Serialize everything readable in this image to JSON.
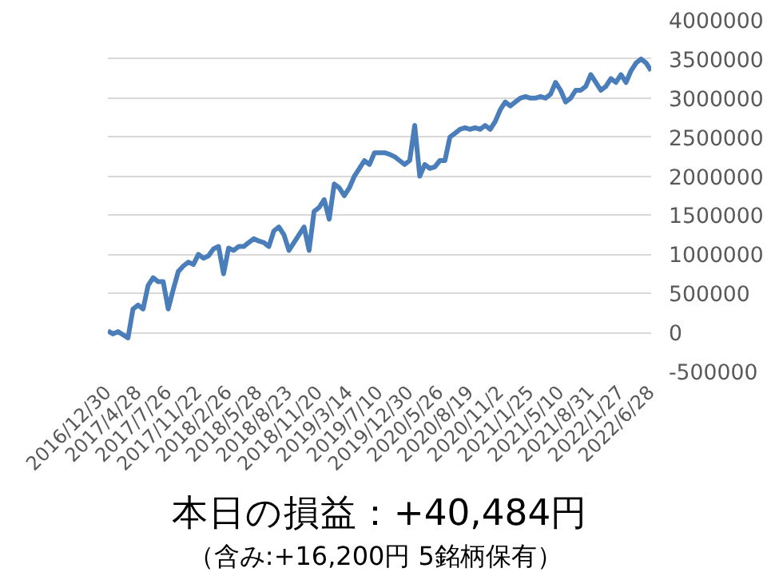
{
  "chart_data": {
    "type": "line",
    "categories": [
      "2016/12/30",
      null,
      null,
      null,
      null,
      null,
      "2017/4/28",
      null,
      null,
      null,
      null,
      null,
      "2017/7/26",
      null,
      null,
      null,
      null,
      null,
      "2017/11/22",
      null,
      null,
      null,
      null,
      null,
      "2018/2/26",
      null,
      null,
      null,
      null,
      null,
      "2018/5/28",
      null,
      null,
      null,
      null,
      null,
      "2018/8/23",
      null,
      null,
      null,
      null,
      null,
      "2018/11/20",
      null,
      null,
      null,
      null,
      null,
      "2019/3/14",
      null,
      null,
      null,
      null,
      null,
      "2019/7/10",
      null,
      null,
      null,
      null,
      null,
      "2019/12/30",
      null,
      null,
      null,
      null,
      null,
      "2020/5/26",
      null,
      null,
      null,
      null,
      null,
      "2020/8/19",
      null,
      null,
      null,
      null,
      null,
      "2020/11/2",
      null,
      null,
      null,
      null,
      null,
      "2021/1/25",
      null,
      null,
      null,
      null,
      null,
      "2021/5/10",
      null,
      null,
      null,
      null,
      null,
      "2021/8/31",
      null,
      null,
      null,
      null,
      null,
      "2022/1/27",
      null,
      null,
      null,
      null,
      null,
      "2022/6/28"
    ],
    "series": [
      {
        "color": "#4a7ebb",
        "values": [
          20000,
          -20000,
          10000,
          -30000,
          -70000,
          300000,
          350000,
          300000,
          600000,
          700000,
          650000,
          650000,
          300000,
          550000,
          780000,
          850000,
          900000,
          870000,
          1000000,
          950000,
          980000,
          1070000,
          1100000,
          750000,
          1080000,
          1050000,
          1100000,
          1100000,
          1150000,
          1200000,
          1170000,
          1150000,
          1100000,
          1300000,
          1350000,
          1250000,
          1050000,
          1150000,
          1250000,
          1350000,
          1050000,
          1550000,
          1600000,
          1700000,
          1450000,
          1900000,
          1850000,
          1750000,
          1850000,
          2000000,
          2100000,
          2200000,
          2150000,
          2300000,
          2300000,
          2300000,
          2280000,
          2250000,
          2200000,
          2150000,
          2200000,
          2650000,
          2000000,
          2150000,
          2100000,
          2120000,
          2200000,
          2200000,
          2500000,
          2550000,
          2600000,
          2620000,
          2600000,
          2620000,
          2600000,
          2650000,
          2600000,
          2700000,
          2850000,
          2950000,
          2900000,
          2950000,
          3000000,
          3020000,
          3000000,
          3000000,
          3020000,
          3000000,
          3050000,
          3200000,
          3100000,
          2950000,
          3000000,
          3100000,
          3100000,
          3150000,
          3300000,
          3200000,
          3100000,
          3150000,
          3250000,
          3200000,
          3300000,
          3200000,
          3350000,
          3450000,
          3500000,
          3450000,
          3350000
        ]
      }
    ],
    "ylim": [
      -500000,
      4000000
    ],
    "yticks": [
      -500000,
      0,
      500000,
      1000000,
      1500000,
      2000000,
      2500000,
      3000000,
      3500000,
      4000000
    ],
    "grid": "y",
    "line_style": "solid",
    "marker": "none",
    "annotations": [
      "本日の損益：+40,484円",
      "（含み:+16,200円  5銘柄保有）"
    ]
  }
}
